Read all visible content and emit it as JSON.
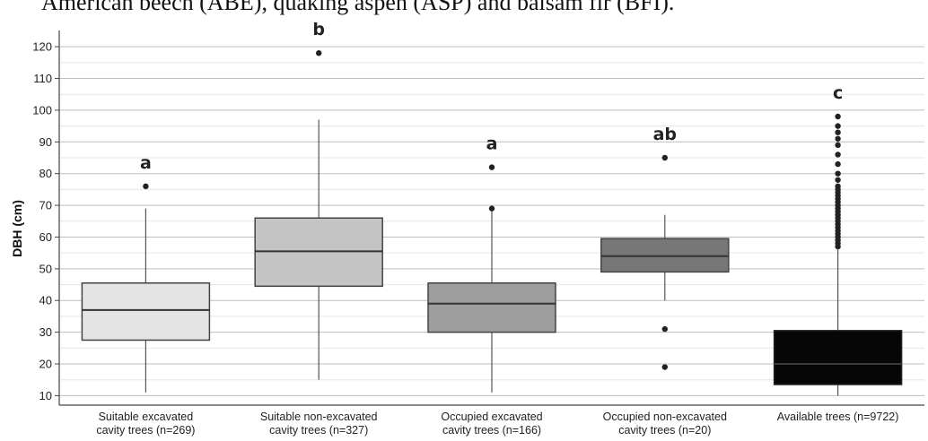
{
  "header": {
    "text": "American beech (ABE), quaking aspen (ASP) and balsam fir (BFI)."
  },
  "chart_data": {
    "type": "box",
    "ylabel": "DBH (cm)",
    "xlabel": "",
    "ylim": [
      7,
      124
    ],
    "yticks": [
      10,
      20,
      30,
      40,
      50,
      60,
      70,
      80,
      90,
      100,
      110,
      120
    ],
    "grid": true,
    "categories": [
      {
        "line1": "Suitable excavated",
        "line2": "cavity trees (n=269)",
        "sig": "a",
        "fill": "#e4e4e4",
        "whisker_low": 11,
        "q1": 27.5,
        "median": 37,
        "q3": 45.5,
        "whisker_high": 69,
        "outliers": [
          76
        ]
      },
      {
        "line1": "Suitable non-excavated",
        "line2": "cavity trees (n=327)",
        "sig": "b",
        "fill": "#c4c4c4",
        "whisker_low": 15,
        "q1": 44.5,
        "median": 55.5,
        "q3": 66,
        "whisker_high": 97,
        "outliers": [
          118
        ]
      },
      {
        "line1": "Occupied excavated",
        "line2": "cavity trees (n=166)",
        "sig": "a",
        "fill": "#9e9e9e",
        "whisker_low": 11,
        "q1": 30,
        "median": 39,
        "q3": 45.5,
        "whisker_high": 69,
        "outliers": [
          69,
          82
        ]
      },
      {
        "line1": "Occupied non-excavated",
        "line2": "cavity trees (n=20)",
        "sig": "ab",
        "fill": "#777777",
        "whisker_low": 40,
        "q1": 49,
        "median": 54,
        "q3": 59.5,
        "whisker_high": 67,
        "outliers": [
          85,
          31,
          19
        ]
      },
      {
        "line1": "Available trees (n=9722)",
        "line2": "",
        "sig": "c",
        "fill": "#060606",
        "whisker_low": 10,
        "q1": 13.5,
        "median": 20,
        "q3": 30.5,
        "whisker_high": 56,
        "outliers": [
          57,
          58,
          59,
          60,
          61,
          62,
          63,
          64,
          65,
          66,
          67,
          68,
          69,
          70,
          71,
          72,
          73,
          74,
          75,
          76,
          78,
          80,
          83,
          86,
          89,
          91,
          93,
          95,
          98
        ]
      }
    ]
  }
}
